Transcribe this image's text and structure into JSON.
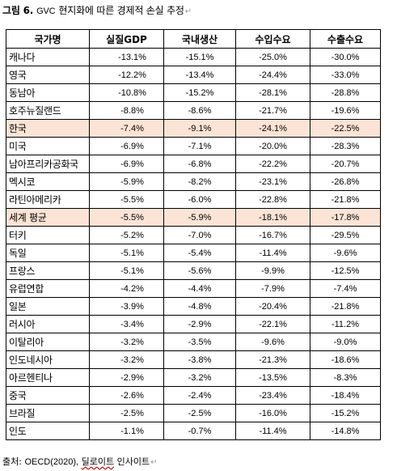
{
  "caption": {
    "prefix": "그림 6.",
    "gvc": "GVC",
    "title": "현지화에 따른 경제적 손실 추정",
    "mark": "↵"
  },
  "table": {
    "headers": [
      "국가명",
      "실질GDP",
      "국내생산",
      "수입수요",
      "수출수요"
    ],
    "rows": [
      {
        "name": "캐나다",
        "values": [
          "-13.1%",
          "-15.1%",
          "-25.0%",
          "-30.0%"
        ],
        "highlight": false
      },
      {
        "name": "영국",
        "values": [
          "-12.2%",
          "-13.4%",
          "-24.4%",
          "-33.0%"
        ],
        "highlight": false
      },
      {
        "name": "동남아",
        "values": [
          "-10.8%",
          "-15.2%",
          "-28.1%",
          "-28.8%"
        ],
        "highlight": false
      },
      {
        "name": "호주뉴질랜드",
        "values": [
          "-8.8%",
          "-8.6%",
          "-21.7%",
          "-19.6%"
        ],
        "highlight": false
      },
      {
        "name": "한국",
        "values": [
          "-7.4%",
          "-9.1%",
          "-24.1%",
          "-22.5%"
        ],
        "highlight": true
      },
      {
        "name": "미국",
        "values": [
          "-6.9%",
          "-7.1%",
          "-20.0%",
          "-28.3%"
        ],
        "highlight": false
      },
      {
        "name": "남아프리카공화국",
        "values": [
          "-6.9%",
          "-6.8%",
          "-22.2%",
          "-20.7%"
        ],
        "highlight": false
      },
      {
        "name": "멕시코",
        "values": [
          "-5.9%",
          "-8.2%",
          "-23.1%",
          "-26.8%"
        ],
        "highlight": false
      },
      {
        "name": "라틴아메리카",
        "values": [
          "-5.5%",
          "-6.0%",
          "-22.8%",
          "-21.8%"
        ],
        "highlight": false
      },
      {
        "name": "세계 평균",
        "values": [
          "-5.5%",
          "-5.9%",
          "-18.1%",
          "-17.8%"
        ],
        "highlight": true
      },
      {
        "name": "터키",
        "values": [
          "-5.2%",
          "-7.0%",
          "-16.7%",
          "-29.5%"
        ],
        "highlight": false
      },
      {
        "name": "독일",
        "values": [
          "-5.1%",
          "-5.4%",
          "-11.4%",
          "-9.6%"
        ],
        "highlight": false
      },
      {
        "name": "프랑스",
        "values": [
          "-5.1%",
          "-5.6%",
          "-9.9%",
          "-12.5%"
        ],
        "highlight": false
      },
      {
        "name": "유럽연합",
        "values": [
          "-4.2%",
          "-4.4%",
          "-7.9%",
          "-7.4%"
        ],
        "highlight": false
      },
      {
        "name": "일본",
        "values": [
          "-3.9%",
          "-4.8%",
          "-20.4%",
          "-21.8%"
        ],
        "highlight": false
      },
      {
        "name": "러시아",
        "values": [
          "-3.4%",
          "-2.9%",
          "-22.1%",
          "-11.2%"
        ],
        "highlight": false
      },
      {
        "name": "이탈리아",
        "values": [
          "-3.2%",
          "-3.5%",
          "-9.6%",
          "-9.0%"
        ],
        "highlight": false
      },
      {
        "name": "인도네시아",
        "values": [
          "-3.2%",
          "-3.8%",
          "-21.3%",
          "-18.6%"
        ],
        "highlight": false
      },
      {
        "name": "아르헨티나",
        "values": [
          "-2.9%",
          "-3.2%",
          "-13.5%",
          "-8.3%"
        ],
        "highlight": false
      },
      {
        "name": "중국",
        "values": [
          "-2.6%",
          "-2.4%",
          "-23.4%",
          "-18.4%"
        ],
        "highlight": false
      },
      {
        "name": "브라질",
        "values": [
          "-2.5%",
          "-2.5%",
          "-16.0%",
          "-15.2%"
        ],
        "highlight": false
      },
      {
        "name": "인도",
        "values": [
          "-1.1%",
          "-0.7%",
          "-11.4%",
          "-14.8%"
        ],
        "highlight": false
      }
    ]
  },
  "source": {
    "label": "출처:",
    "org": "OECD(2020),",
    "firm": "딜로이트",
    "rest": "인사이트",
    "mark": "↵"
  },
  "colors": {
    "highlight_row": "#fbe4d5",
    "border": "#000000"
  }
}
